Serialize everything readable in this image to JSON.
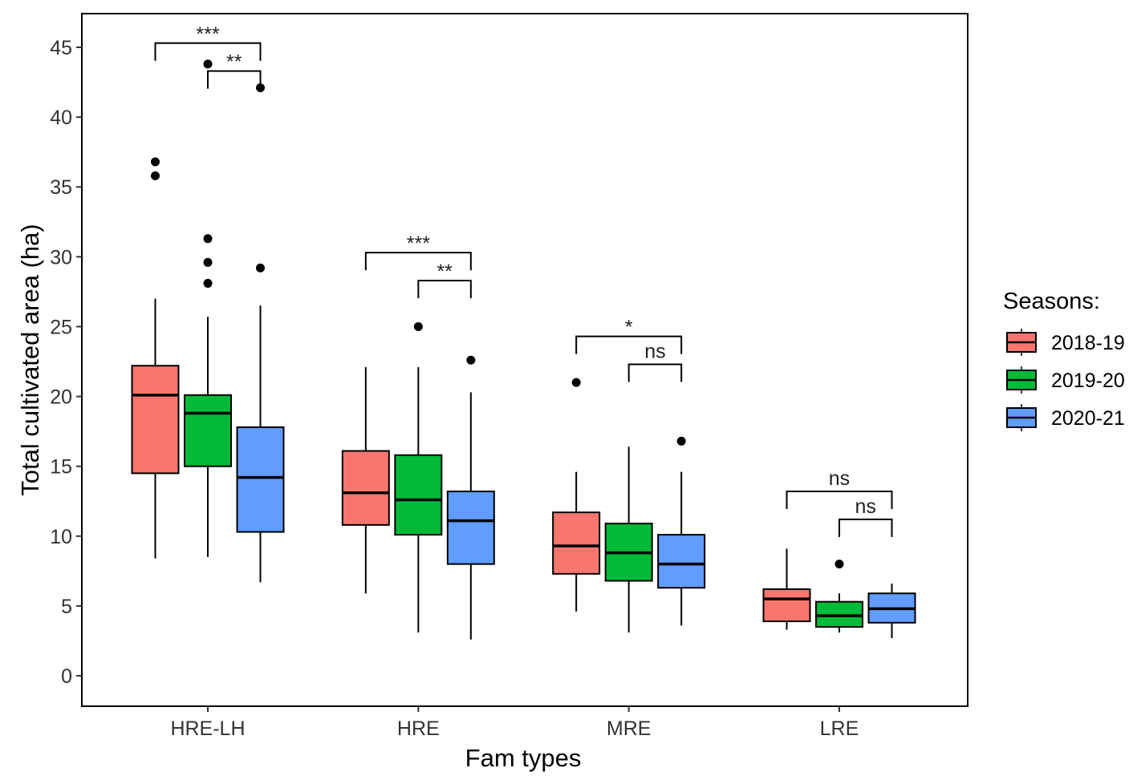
{
  "chart_data": {
    "type": "boxplot",
    "xlabel": "Fam types",
    "ylabel": "Total cultivated area (ha)",
    "ylim": [
      -2,
      47
    ],
    "y_ticks": [
      0,
      5,
      10,
      15,
      20,
      25,
      30,
      35,
      40,
      45
    ],
    "categories": [
      "HRE-LH",
      "HRE",
      "MRE",
      "LRE"
    ],
    "legend": {
      "title": "Seasons:",
      "position": "right"
    },
    "series": [
      {
        "name": "2018-19",
        "color": "#F8766D",
        "boxes": [
          {
            "whisker_low": 8.4,
            "q1": 14.5,
            "median": 20.1,
            "q3": 22.2,
            "whisker_high": 27.0,
            "outliers": [
              35.8,
              36.8
            ]
          },
          {
            "whisker_low": 5.9,
            "q1": 10.8,
            "median": 13.1,
            "q3": 16.1,
            "whisker_high": 22.1,
            "outliers": []
          },
          {
            "whisker_low": 4.6,
            "q1": 7.3,
            "median": 9.3,
            "q3": 11.7,
            "whisker_high": 14.6,
            "outliers": [
              21.0
            ]
          },
          {
            "whisker_low": 3.3,
            "q1": 3.9,
            "median": 5.5,
            "q3": 6.2,
            "whisker_high": 9.1,
            "outliers": []
          }
        ]
      },
      {
        "name": "2019-20",
        "color": "#00BA38",
        "boxes": [
          {
            "whisker_low": 8.5,
            "q1": 15.0,
            "median": 18.8,
            "q3": 20.1,
            "whisker_high": 25.7,
            "outliers": [
              28.1,
              29.6,
              31.3,
              43.8
            ]
          },
          {
            "whisker_low": 3.1,
            "q1": 10.1,
            "median": 12.6,
            "q3": 15.8,
            "whisker_high": 22.1,
            "outliers": [
              25.0
            ]
          },
          {
            "whisker_low": 3.1,
            "q1": 6.8,
            "median": 8.8,
            "q3": 10.9,
            "whisker_high": 16.4,
            "outliers": []
          },
          {
            "whisker_low": 3.1,
            "q1": 3.5,
            "median": 4.3,
            "q3": 5.3,
            "whisker_high": 5.9,
            "outliers": [
              8.0
            ]
          }
        ]
      },
      {
        "name": "2020-21",
        "color": "#619CFF",
        "boxes": [
          {
            "whisker_low": 6.7,
            "q1": 10.3,
            "median": 14.2,
            "q3": 17.8,
            "whisker_high": 26.5,
            "outliers": [
              29.2,
              42.1
            ]
          },
          {
            "whisker_low": 2.6,
            "q1": 8.0,
            "median": 11.1,
            "q3": 13.2,
            "whisker_high": 20.3,
            "outliers": [
              22.6
            ]
          },
          {
            "whisker_low": 3.6,
            "q1": 6.3,
            "median": 8.0,
            "q3": 10.1,
            "whisker_high": 14.6,
            "outliers": [
              16.8
            ]
          },
          {
            "whisker_low": 2.7,
            "q1": 3.8,
            "median": 4.8,
            "q3": 5.9,
            "whisker_high": 6.6,
            "outliers": []
          }
        ]
      }
    ],
    "significance": [
      {
        "category": "HRE-LH",
        "from": "2018-19",
        "to": "2020-21",
        "label": "***",
        "y": 45.3
      },
      {
        "category": "HRE-LH",
        "from": "2019-20",
        "to": "2020-21",
        "label": "**",
        "y": 43.3
      },
      {
        "category": "HRE",
        "from": "2018-19",
        "to": "2020-21",
        "label": "***",
        "y": 30.3
      },
      {
        "category": "HRE",
        "from": "2019-20",
        "to": "2020-21",
        "label": "**",
        "y": 28.3
      },
      {
        "category": "MRE",
        "from": "2018-19",
        "to": "2020-21",
        "label": "*",
        "y": 24.3
      },
      {
        "category": "MRE",
        "from": "2019-20",
        "to": "2020-21",
        "label": "ns",
        "y": 22.3
      },
      {
        "category": "LRE",
        "from": "2018-19",
        "to": "2020-21",
        "label": "ns",
        "y": 13.2
      },
      {
        "category": "LRE",
        "from": "2019-20",
        "to": "2020-21",
        "label": "ns",
        "y": 11.2
      }
    ]
  }
}
